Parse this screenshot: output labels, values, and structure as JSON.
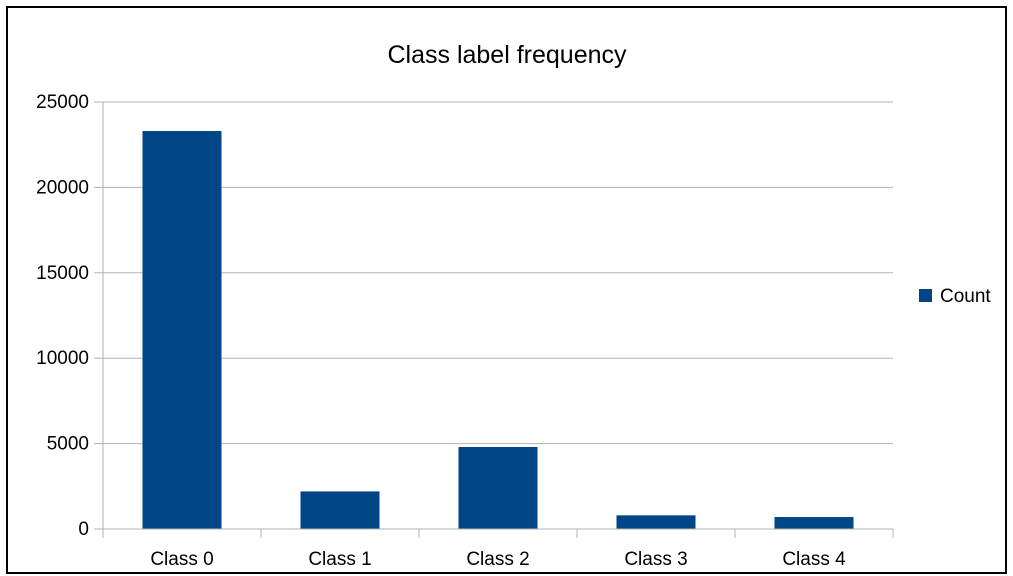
{
  "chart_data": {
    "type": "bar",
    "title": "Class label frequency",
    "xlabel": "",
    "ylabel": "",
    "categories": [
      "Class 0",
      "Class 1",
      "Class 2",
      "Class 3",
      "Class 4"
    ],
    "series": [
      {
        "name": "Count",
        "values": [
          23300,
          2200,
          4800,
          800,
          700
        ]
      }
    ],
    "ylim": [
      0,
      25000
    ],
    "yticks": [
      0,
      5000,
      10000,
      15000,
      20000,
      25000
    ],
    "ytick_labels": [
      "0",
      "5000",
      "10000",
      "15000",
      "20000",
      "25000"
    ],
    "grid": true,
    "legend_position": "right",
    "colors": {
      "bar": "#004586",
      "grid": "#b3b3b3",
      "axis": "#b3b3b3",
      "text": "#000000"
    }
  }
}
